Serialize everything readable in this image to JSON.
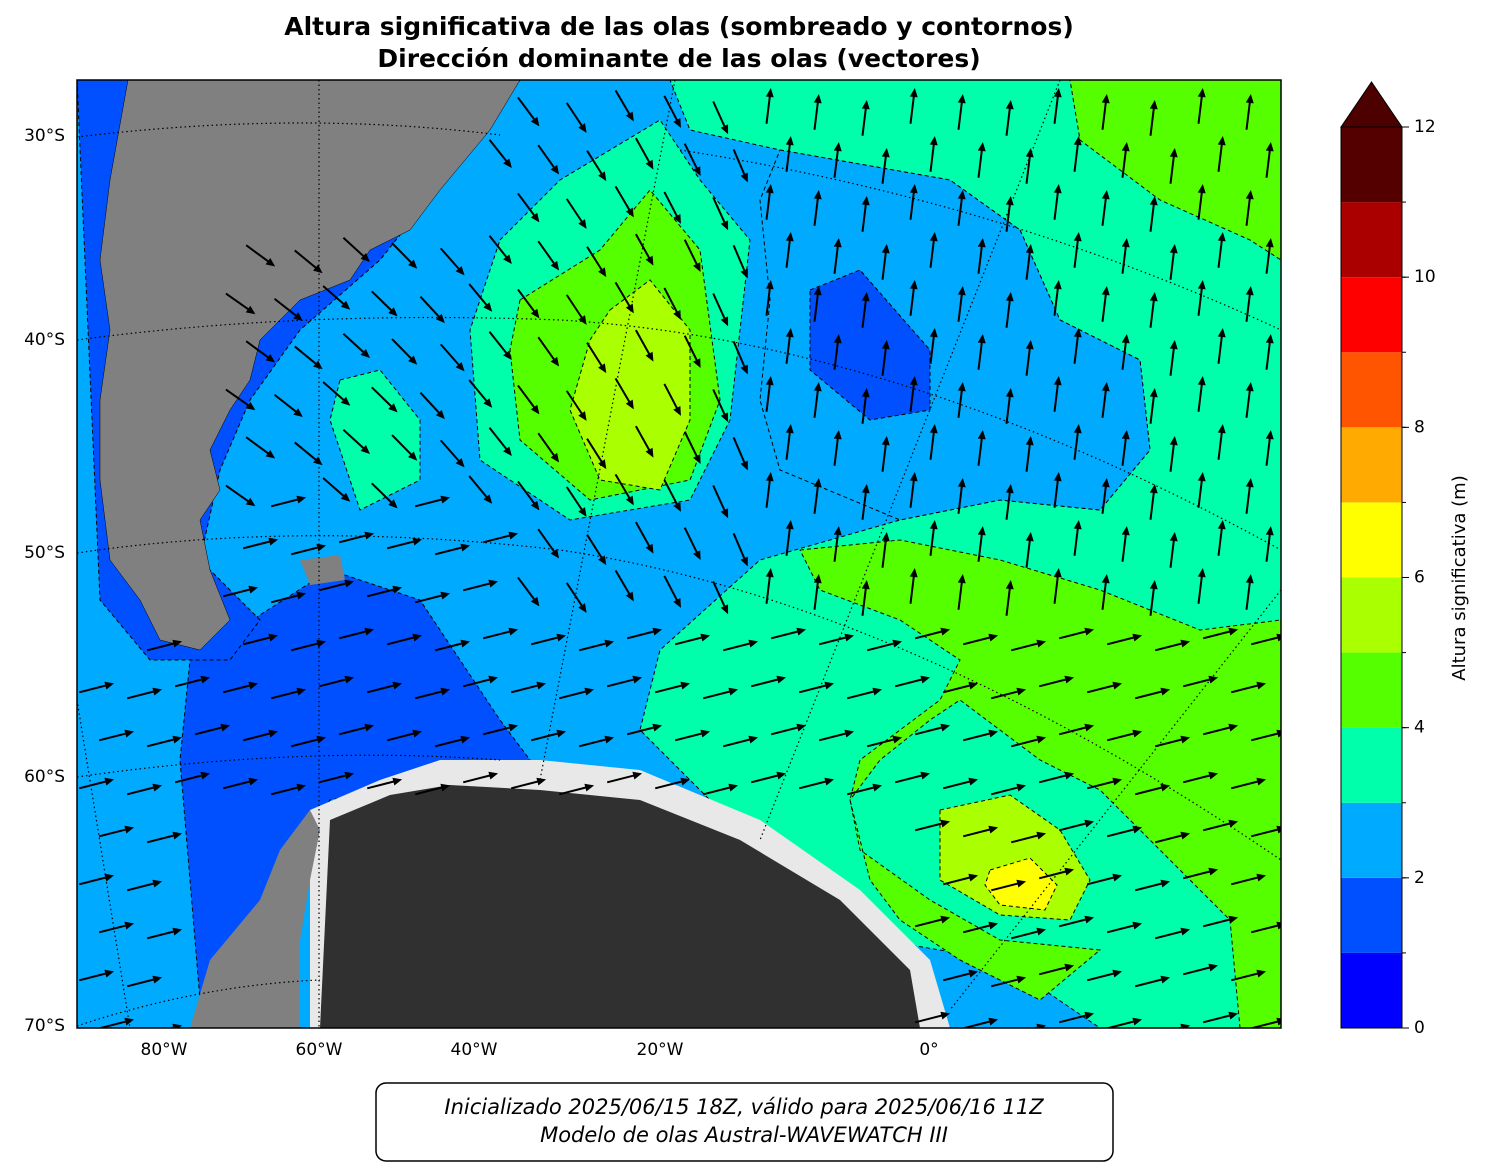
{
  "title": [
    "Altura significativa de las olas (sombreado y contornos)",
    "Dirección dominante de las olas (vectores)"
  ],
  "map": {
    "lat_labels": [
      "30°S",
      "40°S",
      "50°S",
      "60°S",
      "70°S"
    ],
    "lon_labels": [
      "80°W",
      "60°W",
      "40°W",
      "20°W",
      "0°"
    ]
  },
  "colorbar": {
    "label": "Altura significativa (m)",
    "levels": [
      0,
      1,
      2,
      3,
      4,
      5,
      6,
      7,
      8,
      9,
      10,
      11,
      12
    ],
    "colors": [
      "#0000ff",
      "#0050ff",
      "#00aaff",
      "#00ffaa",
      "#55ff00",
      "#aaff00",
      "#ffff00",
      "#ffaa00",
      "#ff5500",
      "#ff0000",
      "#aa0000",
      "#550000"
    ],
    "extend_color": "#4d0000",
    "ticks": [
      0,
      2,
      4,
      6,
      8,
      10,
      12
    ]
  },
  "footer": [
    "Inicializado 2025/06/15 18Z, válido para 2025/06/16 11Z",
    "Modelo de olas Austral-WAVEWATCH III"
  ]
}
